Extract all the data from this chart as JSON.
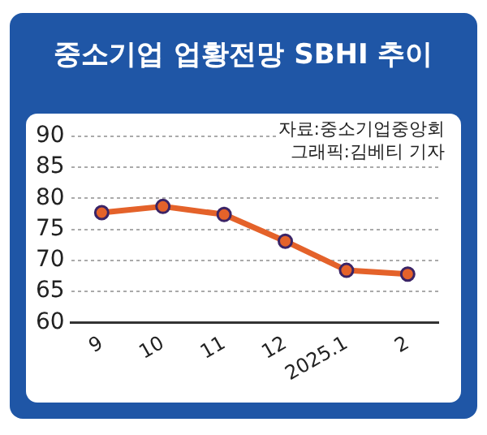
{
  "chart_data": {
    "type": "line",
    "title": "중소기업 업황전망 SBHI 추이",
    "annotations": [
      "자료:중소기업중앙회",
      "그래픽:김베티 기자"
    ],
    "categories": [
      "9",
      "10",
      "11",
      "12",
      "2025.1",
      "2"
    ],
    "series": [
      {
        "color": "#e4622a",
        "values": [
          77.7,
          78.7,
          77.4,
          73.1,
          68.4,
          67.8
        ]
      }
    ],
    "ylim": [
      60,
      90
    ],
    "yticks": [
      60,
      65,
      70,
      75,
      80,
      85,
      90
    ],
    "grid": "y",
    "legend": false,
    "marker": "circle",
    "line_style": "solid"
  }
}
